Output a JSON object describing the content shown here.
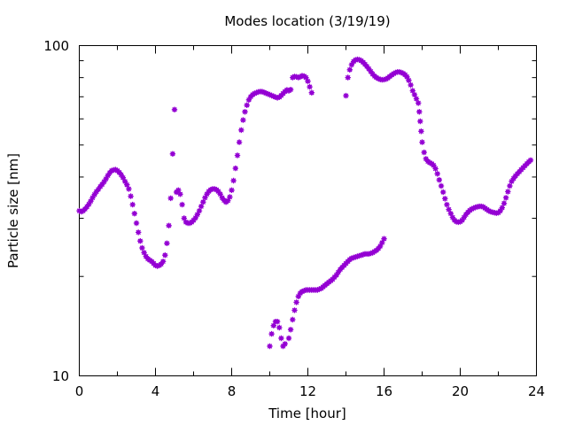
{
  "chart_data": {
    "type": "scatter",
    "title": "Modes location (3/19/19)",
    "xlabel": "Time [hour]",
    "ylabel": "Particle size [nm]",
    "xlim": [
      0,
      24
    ],
    "ylim": [
      10,
      100
    ],
    "yscale": "log",
    "grid": false,
    "legend": "none",
    "xticks": [
      "0",
      "4",
      "8",
      "12",
      "16",
      "20",
      "24"
    ],
    "yticks": [
      "10",
      "100"
    ],
    "marker_color": "#9400d3",
    "series": [
      {
        "points": [
          [
            0.0,
            31.6
          ],
          [
            0.1,
            31.4
          ],
          [
            0.2,
            31.6
          ],
          [
            0.3,
            32.0
          ],
          [
            0.4,
            32.5
          ],
          [
            0.5,
            33.1
          ],
          [
            0.6,
            33.8
          ],
          [
            0.7,
            34.6
          ],
          [
            0.8,
            35.4
          ],
          [
            0.9,
            36.1
          ],
          [
            1.0,
            36.7
          ],
          [
            1.1,
            37.4
          ],
          [
            1.2,
            38.0
          ],
          [
            1.3,
            38.7
          ],
          [
            1.4,
            39.5
          ],
          [
            1.5,
            40.4
          ],
          [
            1.6,
            41.2
          ],
          [
            1.7,
            41.8
          ],
          [
            1.8,
            42.0
          ],
          [
            1.9,
            42.1
          ],
          [
            2.0,
            41.8
          ],
          [
            2.1,
            41.3
          ],
          [
            2.2,
            40.6
          ],
          [
            2.3,
            39.8
          ],
          [
            2.4,
            38.8
          ],
          [
            2.5,
            37.9
          ],
          [
            2.6,
            36.8
          ],
          [
            2.7,
            35.0
          ],
          [
            2.8,
            33.0
          ],
          [
            2.9,
            31.0
          ],
          [
            3.0,
            29.0
          ],
          [
            3.1,
            27.2
          ],
          [
            3.2,
            25.6
          ],
          [
            3.3,
            24.4
          ],
          [
            3.4,
            23.6
          ],
          [
            3.5,
            23.0
          ],
          [
            3.6,
            22.6
          ],
          [
            3.7,
            22.4
          ],
          [
            3.8,
            22.2
          ],
          [
            3.9,
            21.9
          ],
          [
            4.0,
            21.6
          ],
          [
            4.1,
            21.5
          ],
          [
            4.2,
            21.6
          ],
          [
            4.3,
            21.8
          ],
          [
            4.4,
            22.2
          ],
          [
            4.5,
            23.2
          ],
          [
            4.6,
            25.2
          ],
          [
            4.7,
            28.5
          ],
          [
            4.8,
            34.5
          ],
          [
            4.9,
            47.0
          ],
          [
            5.0,
            64.0
          ],
          [
            5.1,
            36.0
          ],
          [
            5.2,
            36.5
          ],
          [
            5.3,
            35.5
          ],
          [
            5.4,
            33.0
          ],
          [
            5.5,
            30.0
          ],
          [
            5.6,
            29.2
          ],
          [
            5.7,
            29.0
          ],
          [
            5.8,
            29.0
          ],
          [
            5.9,
            29.2
          ],
          [
            6.0,
            29.6
          ],
          [
            6.1,
            30.1
          ],
          [
            6.2,
            30.8
          ],
          [
            6.3,
            31.6
          ],
          [
            6.4,
            32.6
          ],
          [
            6.5,
            33.6
          ],
          [
            6.6,
            34.6
          ],
          [
            6.7,
            35.5
          ],
          [
            6.8,
            36.2
          ],
          [
            6.9,
            36.6
          ],
          [
            7.0,
            36.8
          ],
          [
            7.1,
            36.8
          ],
          [
            7.2,
            36.6
          ],
          [
            7.3,
            36.2
          ],
          [
            7.4,
            35.5
          ],
          [
            7.5,
            34.6
          ],
          [
            7.6,
            34.0
          ],
          [
            7.7,
            33.6
          ],
          [
            7.8,
            33.9
          ],
          [
            7.9,
            34.8
          ],
          [
            8.0,
            36.5
          ],
          [
            8.1,
            39.0
          ],
          [
            8.2,
            42.5
          ],
          [
            8.3,
            46.5
          ],
          [
            8.4,
            51.0
          ],
          [
            8.5,
            55.5
          ],
          [
            8.6,
            59.5
          ],
          [
            8.7,
            63.0
          ],
          [
            8.8,
            66.0
          ],
          [
            8.9,
            68.5
          ],
          [
            9.0,
            70.0
          ],
          [
            9.1,
            71.0
          ],
          [
            9.2,
            71.6
          ],
          [
            9.3,
            72.0
          ],
          [
            9.4,
            72.4
          ],
          [
            9.5,
            72.6
          ],
          [
            9.6,
            72.5
          ],
          [
            9.7,
            72.2
          ],
          [
            9.8,
            71.8
          ],
          [
            9.9,
            71.4
          ],
          [
            10.0,
            71.0
          ],
          [
            10.1,
            70.6
          ],
          [
            10.2,
            70.2
          ],
          [
            10.3,
            69.8
          ],
          [
            10.4,
            69.5
          ],
          [
            10.5,
            69.8
          ],
          [
            10.6,
            70.6
          ],
          [
            10.7,
            71.6
          ],
          [
            10.8,
            72.6
          ],
          [
            10.9,
            73.4
          ],
          [
            11.0,
            73.0
          ],
          [
            11.1,
            73.6
          ],
          [
            11.2,
            80.0
          ],
          [
            11.3,
            80.6
          ],
          [
            11.4,
            80.4
          ],
          [
            11.5,
            80.0
          ],
          [
            11.6,
            80.4
          ],
          [
            11.7,
            81.0
          ],
          [
            11.8,
            80.8
          ],
          [
            11.9,
            80.0
          ],
          [
            12.0,
            78.0
          ],
          [
            12.1,
            75.0
          ],
          [
            12.2,
            72.0
          ],
          [
            14.0,
            70.5
          ],
          [
            14.1,
            80.0
          ],
          [
            14.2,
            84.5
          ],
          [
            14.3,
            87.5
          ],
          [
            14.4,
            89.5
          ],
          [
            14.5,
            90.5
          ],
          [
            14.6,
            90.8
          ],
          [
            14.7,
            90.6
          ],
          [
            14.8,
            90.0
          ],
          [
            14.9,
            89.0
          ],
          [
            15.0,
            87.8
          ],
          [
            15.1,
            86.5
          ],
          [
            15.2,
            85.0
          ],
          [
            15.3,
            83.5
          ],
          [
            15.4,
            82.0
          ],
          [
            15.5,
            80.8
          ],
          [
            15.6,
            80.0
          ],
          [
            15.7,
            79.4
          ],
          [
            15.8,
            79.0
          ],
          [
            15.9,
            78.8
          ],
          [
            16.0,
            78.9
          ],
          [
            16.1,
            79.2
          ],
          [
            16.2,
            79.8
          ],
          [
            16.3,
            80.6
          ],
          [
            16.4,
            81.4
          ],
          [
            16.5,
            82.2
          ],
          [
            16.6,
            82.8
          ],
          [
            16.7,
            83.2
          ],
          [
            16.8,
            83.2
          ],
          [
            16.9,
            82.9
          ],
          [
            17.0,
            82.4
          ],
          [
            17.1,
            81.6
          ],
          [
            17.2,
            80.4
          ],
          [
            17.3,
            78.5
          ],
          [
            17.4,
            76.0
          ],
          [
            17.5,
            73.0
          ],
          [
            17.6,
            71.0
          ],
          [
            17.7,
            69.0
          ],
          [
            17.8,
            67.0
          ],
          [
            17.85,
            63.0
          ],
          [
            17.9,
            59.0
          ],
          [
            17.95,
            55.0
          ],
          [
            18.0,
            51.0
          ],
          [
            18.1,
            47.5
          ],
          [
            18.2,
            45.4
          ],
          [
            18.3,
            44.6
          ],
          [
            18.4,
            44.2
          ],
          [
            18.5,
            43.9
          ],
          [
            18.6,
            43.4
          ],
          [
            18.7,
            42.4
          ],
          [
            18.8,
            40.9
          ],
          [
            18.9,
            39.2
          ],
          [
            19.0,
            37.6
          ],
          [
            19.1,
            36.0
          ],
          [
            19.2,
            34.4
          ],
          [
            19.3,
            33.0
          ],
          [
            19.4,
            31.9
          ],
          [
            19.5,
            31.0
          ],
          [
            19.6,
            30.2
          ],
          [
            19.7,
            29.6
          ],
          [
            19.8,
            29.3
          ],
          [
            19.9,
            29.2
          ],
          [
            20.0,
            29.3
          ],
          [
            20.1,
            29.6
          ],
          [
            20.2,
            30.2
          ],
          [
            20.3,
            30.8
          ],
          [
            20.4,
            31.3
          ],
          [
            20.5,
            31.7
          ],
          [
            20.6,
            32.0
          ],
          [
            20.7,
            32.2
          ],
          [
            20.8,
            32.4
          ],
          [
            20.9,
            32.5
          ],
          [
            21.0,
            32.6
          ],
          [
            21.1,
            32.6
          ],
          [
            21.2,
            32.5
          ],
          [
            21.3,
            32.2
          ],
          [
            21.4,
            31.9
          ],
          [
            21.5,
            31.6
          ],
          [
            21.6,
            31.4
          ],
          [
            21.7,
            31.3
          ],
          [
            21.8,
            31.2
          ],
          [
            21.9,
            31.1
          ],
          [
            22.0,
            31.2
          ],
          [
            22.1,
            31.6
          ],
          [
            22.2,
            32.3
          ],
          [
            22.3,
            33.3
          ],
          [
            22.4,
            34.6
          ],
          [
            22.5,
            36.1
          ],
          [
            22.6,
            37.6
          ],
          [
            22.7,
            38.8
          ],
          [
            22.8,
            39.6
          ],
          [
            22.9,
            40.3
          ],
          [
            23.0,
            40.9
          ],
          [
            23.1,
            41.5
          ],
          [
            23.2,
            42.1
          ],
          [
            23.3,
            42.7
          ],
          [
            23.4,
            43.3
          ],
          [
            23.5,
            43.9
          ],
          [
            23.6,
            44.5
          ],
          [
            23.7,
            45.0
          ],
          [
            10.0,
            12.3
          ],
          [
            10.1,
            13.4
          ],
          [
            10.2,
            14.2
          ],
          [
            10.3,
            14.6
          ],
          [
            10.4,
            14.6
          ],
          [
            10.5,
            14.0
          ],
          [
            10.6,
            13.0
          ],
          [
            10.7,
            12.3
          ],
          [
            10.8,
            12.5
          ],
          [
            11.0,
            13.0
          ],
          [
            11.1,
            13.8
          ],
          [
            11.2,
            14.8
          ],
          [
            11.3,
            15.8
          ],
          [
            11.4,
            16.7
          ],
          [
            11.5,
            17.4
          ],
          [
            11.6,
            17.8
          ],
          [
            11.7,
            18.0
          ],
          [
            11.8,
            18.1
          ],
          [
            11.9,
            18.2
          ],
          [
            12.0,
            18.2
          ],
          [
            12.1,
            18.2
          ],
          [
            12.2,
            18.2
          ],
          [
            12.3,
            18.2
          ],
          [
            12.4,
            18.2
          ],
          [
            12.5,
            18.2
          ],
          [
            12.6,
            18.3
          ],
          [
            12.7,
            18.4
          ],
          [
            12.8,
            18.6
          ],
          [
            12.9,
            18.8
          ],
          [
            13.0,
            19.0
          ],
          [
            13.1,
            19.2
          ],
          [
            13.2,
            19.4
          ],
          [
            13.3,
            19.6
          ],
          [
            13.4,
            19.9
          ],
          [
            13.5,
            20.2
          ],
          [
            13.6,
            20.6
          ],
          [
            13.7,
            21.0
          ],
          [
            13.8,
            21.3
          ],
          [
            13.9,
            21.6
          ],
          [
            14.0,
            21.9
          ],
          [
            14.1,
            22.2
          ],
          [
            14.2,
            22.5
          ],
          [
            14.3,
            22.7
          ],
          [
            14.4,
            22.8
          ],
          [
            14.5,
            22.9
          ],
          [
            14.6,
            23.0
          ],
          [
            14.7,
            23.1
          ],
          [
            14.8,
            23.2
          ],
          [
            14.9,
            23.3
          ],
          [
            15.0,
            23.4
          ],
          [
            15.1,
            23.4
          ],
          [
            15.2,
            23.4
          ],
          [
            15.3,
            23.5
          ],
          [
            15.4,
            23.6
          ],
          [
            15.5,
            23.8
          ],
          [
            15.6,
            24.0
          ],
          [
            15.7,
            24.3
          ],
          [
            15.8,
            24.7
          ],
          [
            15.9,
            25.3
          ],
          [
            16.0,
            26.0
          ]
        ]
      }
    ]
  }
}
